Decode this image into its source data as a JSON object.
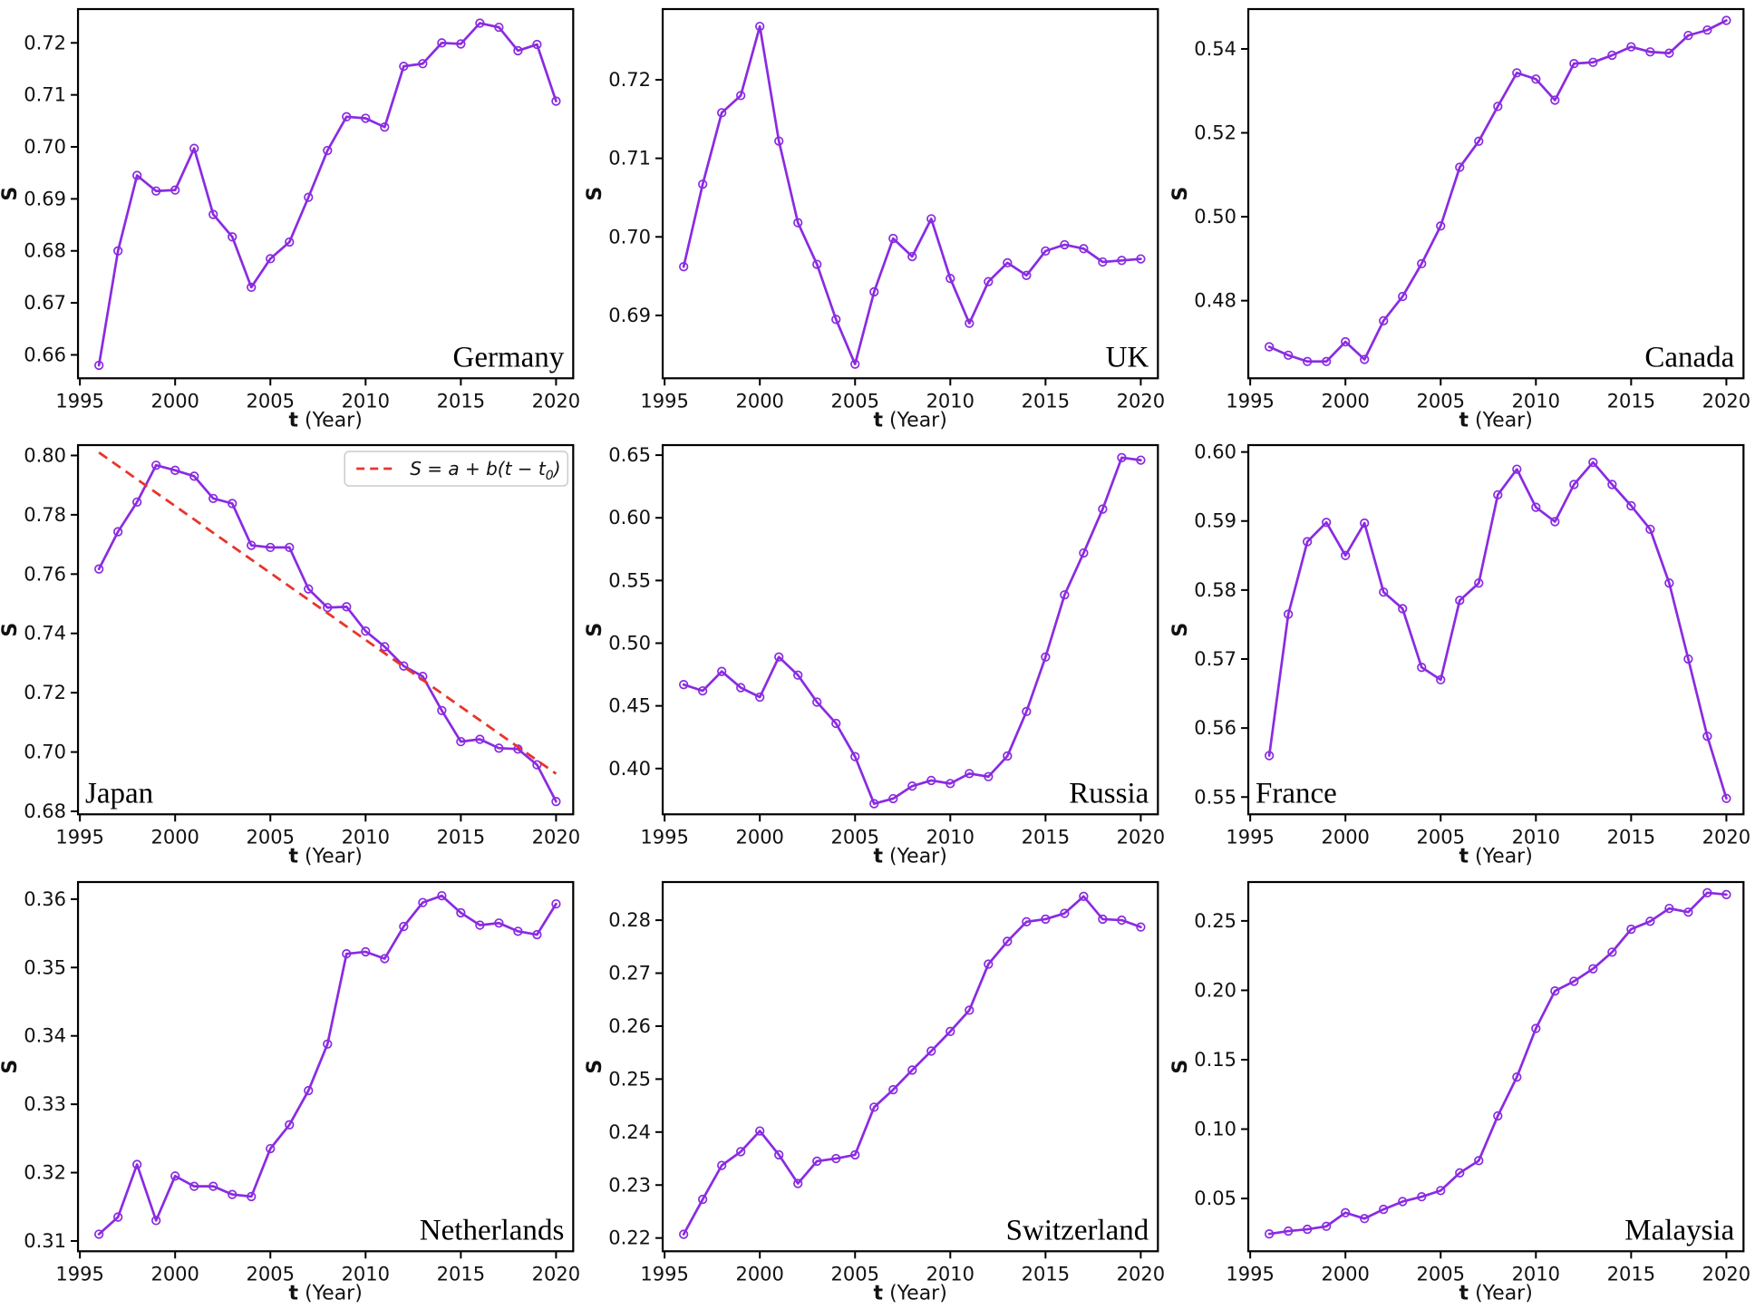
{
  "figure": {
    "background": "#ffffff",
    "line_color": "#8a2be2",
    "marker": "open-circle",
    "fit_color": "#e8352c",
    "axes_color": "#000000",
    "xlabel_bold": "t",
    "xlabel_rest": " (Year)",
    "ylabel": "S",
    "xlim": [
      1994.9,
      2020.9
    ],
    "xticks": [
      {
        "v": 1995,
        "t": "1995"
      },
      {
        "v": 2000,
        "t": "2000"
      },
      {
        "v": 2005,
        "t": "2005"
      },
      {
        "v": 2010,
        "t": "2010"
      },
      {
        "v": 2015,
        "t": "2015"
      },
      {
        "v": 2020,
        "t": "2020"
      }
    ],
    "years": [
      1996,
      1997,
      1998,
      1999,
      2000,
      2001,
      2002,
      2003,
      2004,
      2005,
      2006,
      2007,
      2008,
      2009,
      2010,
      2011,
      2012,
      2013,
      2014,
      2015,
      2016,
      2017,
      2018,
      2019,
      2020
    ]
  },
  "chart_data": [
    {
      "type": "line",
      "country": "Germany",
      "label_pos": "br",
      "xlabel": "t (Year)",
      "ylabel": "S",
      "ylim": [
        0.6555,
        0.7265
      ],
      "yticks": [
        {
          "v": 0.66,
          "t": "0.66"
        },
        {
          "v": 0.67,
          "t": "0.67"
        },
        {
          "v": 0.68,
          "t": "0.68"
        },
        {
          "v": 0.69,
          "t": "0.69"
        },
        {
          "v": 0.7,
          "t": "0.70"
        },
        {
          "v": 0.71,
          "t": "0.71"
        },
        {
          "v": 0.72,
          "t": "0.72"
        }
      ],
      "values": [
        0.658,
        0.68,
        0.6945,
        0.6915,
        0.6917,
        0.6997,
        0.687,
        0.6827,
        0.673,
        0.6785,
        0.6817,
        0.6903,
        0.6993,
        0.7058,
        0.7055,
        0.7038,
        0.7155,
        0.716,
        0.72,
        0.7198,
        0.7238,
        0.723,
        0.7185,
        0.7197,
        0.7088
      ]
    },
    {
      "type": "line",
      "country": "UK",
      "label_pos": "br",
      "xlabel": "t (Year)",
      "ylabel": "S",
      "ylim": [
        0.682,
        0.729
      ],
      "yticks": [
        {
          "v": 0.69,
          "t": "0.69"
        },
        {
          "v": 0.7,
          "t": "0.70"
        },
        {
          "v": 0.71,
          "t": "0.71"
        },
        {
          "v": 0.72,
          "t": "0.72"
        }
      ],
      "values": [
        0.6962,
        0.7067,
        0.7158,
        0.718,
        0.7268,
        0.7122,
        0.7018,
        0.6965,
        0.6895,
        0.6838,
        0.693,
        0.6998,
        0.6975,
        0.7023,
        0.6947,
        0.689,
        0.6943,
        0.6967,
        0.6951,
        0.6982,
        0.699,
        0.6985,
        0.6968,
        0.697,
        0.6972
      ]
    },
    {
      "type": "line",
      "country": "Canada",
      "label_pos": "br",
      "xlabel": "t (Year)",
      "ylabel": "S",
      "ylim": [
        0.4615,
        0.5495
      ],
      "yticks": [
        {
          "v": 0.48,
          "t": "0.48"
        },
        {
          "v": 0.5,
          "t": "0.50"
        },
        {
          "v": 0.52,
          "t": "0.52"
        },
        {
          "v": 0.54,
          "t": "0.54"
        }
      ],
      "values": [
        0.469,
        0.467,
        0.4655,
        0.4655,
        0.4702,
        0.466,
        0.4752,
        0.481,
        0.4888,
        0.4978,
        0.5118,
        0.518,
        0.5263,
        0.5343,
        0.5328,
        0.5278,
        0.5365,
        0.5368,
        0.5385,
        0.5405,
        0.5393,
        0.539,
        0.5432,
        0.5445,
        0.5468
      ]
    },
    {
      "type": "line",
      "country": "Japan",
      "label_pos": "bl",
      "xlabel": "t (Year)",
      "ylabel": "S",
      "ylim": [
        0.679,
        0.8035
      ],
      "yticks": [
        {
          "v": 0.68,
          "t": "0.68"
        },
        {
          "v": 0.7,
          "t": "0.70"
        },
        {
          "v": 0.72,
          "t": "0.72"
        },
        {
          "v": 0.74,
          "t": "0.74"
        },
        {
          "v": 0.76,
          "t": "0.76"
        },
        {
          "v": 0.78,
          "t": "0.78"
        },
        {
          "v": 0.8,
          "t": "0.80"
        }
      ],
      "values": [
        0.7617,
        0.7743,
        0.7843,
        0.7967,
        0.795,
        0.793,
        0.7855,
        0.7838,
        0.7697,
        0.769,
        0.769,
        0.755,
        0.7487,
        0.749,
        0.7408,
        0.7355,
        0.729,
        0.7255,
        0.714,
        0.7035,
        0.7043,
        0.7013,
        0.701,
        0.6957,
        0.6833
      ],
      "fit": {
        "x": [
          1996,
          2020
        ],
        "y": [
          0.801,
          0.6927
        ],
        "legend_pre": "S = a + b(t − t",
        "legend_sub": "0",
        "legend_post": ")"
      }
    },
    {
      "type": "line",
      "country": "Russia",
      "label_pos": "br",
      "xlabel": "t (Year)",
      "ylabel": "S",
      "ylim": [
        0.3635,
        0.658
      ],
      "yticks": [
        {
          "v": 0.4,
          "t": "0.40"
        },
        {
          "v": 0.45,
          "t": "0.45"
        },
        {
          "v": 0.5,
          "t": "0.50"
        },
        {
          "v": 0.55,
          "t": "0.55"
        },
        {
          "v": 0.6,
          "t": "0.60"
        },
        {
          "v": 0.65,
          "t": "0.65"
        }
      ],
      "values": [
        0.467,
        0.462,
        0.4775,
        0.4645,
        0.457,
        0.489,
        0.4745,
        0.453,
        0.436,
        0.4095,
        0.372,
        0.376,
        0.386,
        0.3905,
        0.388,
        0.396,
        0.3935,
        0.41,
        0.4455,
        0.489,
        0.5385,
        0.572,
        0.607,
        0.648,
        0.646
      ]
    },
    {
      "type": "line",
      "country": "France",
      "label_pos": "bl",
      "xlabel": "t (Year)",
      "ylabel": "S",
      "ylim": [
        0.5475,
        0.601
      ],
      "yticks": [
        {
          "v": 0.55,
          "t": "0.55"
        },
        {
          "v": 0.56,
          "t": "0.56"
        },
        {
          "v": 0.57,
          "t": "0.57"
        },
        {
          "v": 0.58,
          "t": "0.58"
        },
        {
          "v": 0.59,
          "t": "0.59"
        },
        {
          "v": 0.6,
          "t": "0.60"
        }
      ],
      "values": [
        0.556,
        0.5765,
        0.587,
        0.5898,
        0.585,
        0.5897,
        0.5797,
        0.5773,
        0.5688,
        0.567,
        0.5785,
        0.581,
        0.5938,
        0.5975,
        0.592,
        0.5899,
        0.5953,
        0.5985,
        0.5953,
        0.5922,
        0.5888,
        0.581,
        0.57,
        0.5588,
        0.5498
      ]
    },
    {
      "type": "line",
      "country": "Netherlands",
      "label_pos": "br",
      "xlabel": "t (Year)",
      "ylabel": "S",
      "ylim": [
        0.3085,
        0.3625
      ],
      "yticks": [
        {
          "v": 0.31,
          "t": "0.31"
        },
        {
          "v": 0.32,
          "t": "0.32"
        },
        {
          "v": 0.33,
          "t": "0.33"
        },
        {
          "v": 0.34,
          "t": "0.34"
        },
        {
          "v": 0.35,
          "t": "0.35"
        },
        {
          "v": 0.36,
          "t": "0.36"
        }
      ],
      "values": [
        0.311,
        0.3135,
        0.3212,
        0.313,
        0.3195,
        0.318,
        0.318,
        0.3168,
        0.3165,
        0.3235,
        0.327,
        0.332,
        0.3388,
        0.352,
        0.3523,
        0.3513,
        0.356,
        0.3595,
        0.3605,
        0.358,
        0.3562,
        0.3565,
        0.3553,
        0.3548,
        0.3593
      ]
    },
    {
      "type": "line",
      "country": "Switzerland",
      "label_pos": "br",
      "xlabel": "t (Year)",
      "ylabel": "S",
      "ylim": [
        0.2175,
        0.2872
      ],
      "yticks": [
        {
          "v": 0.22,
          "t": "0.22"
        },
        {
          "v": 0.23,
          "t": "0.23"
        },
        {
          "v": 0.24,
          "t": "0.24"
        },
        {
          "v": 0.25,
          "t": "0.25"
        },
        {
          "v": 0.26,
          "t": "0.26"
        },
        {
          "v": 0.27,
          "t": "0.27"
        },
        {
          "v": 0.28,
          "t": "0.28"
        }
      ],
      "values": [
        0.2207,
        0.2273,
        0.2337,
        0.2363,
        0.2402,
        0.2357,
        0.2303,
        0.2345,
        0.235,
        0.2357,
        0.2447,
        0.248,
        0.2517,
        0.2553,
        0.259,
        0.263,
        0.2717,
        0.276,
        0.2797,
        0.2802,
        0.2813,
        0.2845,
        0.2802,
        0.28,
        0.2787
      ]
    },
    {
      "type": "line",
      "country": "Malaysia",
      "label_pos": "br",
      "xlabel": "t (Year)",
      "ylabel": "S",
      "ylim": [
        0.012,
        0.278
      ],
      "yticks": [
        {
          "v": 0.05,
          "t": "0.05"
        },
        {
          "v": 0.1,
          "t": "0.10"
        },
        {
          "v": 0.15,
          "t": "0.15"
        },
        {
          "v": 0.2,
          "t": "0.20"
        },
        {
          "v": 0.25,
          "t": "0.25"
        }
      ],
      "values": [
        0.0245,
        0.0265,
        0.0278,
        0.03,
        0.0398,
        0.0355,
        0.0422,
        0.0478,
        0.0513,
        0.0557,
        0.0685,
        0.0773,
        0.1095,
        0.1375,
        0.1725,
        0.1995,
        0.2065,
        0.2155,
        0.2275,
        0.244,
        0.2497,
        0.259,
        0.2563,
        0.2703,
        0.269
      ]
    }
  ]
}
